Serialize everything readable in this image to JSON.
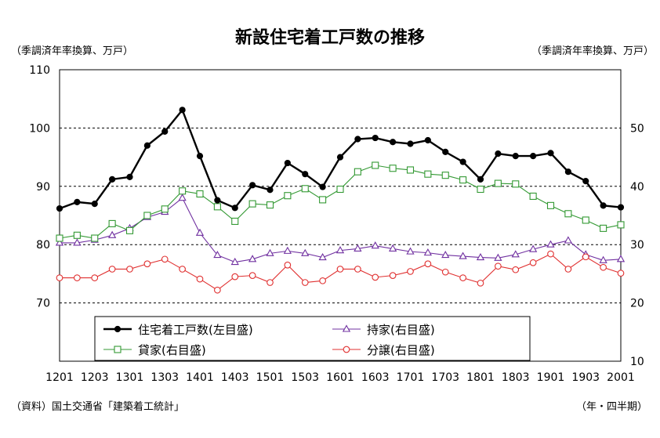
{
  "chart_data": {
    "type": "line",
    "title": "新設住宅着工戸数の推移",
    "ylabel_left": "（季調済年率換算、万戸）",
    "ylabel_right": "（季調済年率換算、万戸）",
    "xlabel": "（年・四半期）",
    "source": "（資料）国土交通省「建築着工統計」",
    "x_tick_labels": [
      "1201",
      "1203",
      "1301",
      "1303",
      "1401",
      "1403",
      "1501",
      "1503",
      "1601",
      "1603",
      "1701",
      "1703",
      "1801",
      "1803",
      "1901",
      "1903",
      "2001"
    ],
    "left_axis": {
      "ticks": [
        70,
        80,
        90,
        100,
        110
      ],
      "range": [
        60,
        110
      ]
    },
    "right_axis": {
      "ticks": [
        10,
        20,
        30,
        40,
        50
      ],
      "range": [
        10,
        60
      ]
    },
    "grid": "dashed horizontal",
    "legend_placement": "bottom-left inside",
    "series": [
      {
        "name": "住宅着工戸数(左目盛)",
        "axis": "left",
        "marker": "filled-circle",
        "color": "#000000",
        "values": [
          86.2,
          87.3,
          87.0,
          91.2,
          91.6,
          97.0,
          99.4,
          103.1,
          95.2,
          87.6,
          86.3,
          90.2,
          89.4,
          94.0,
          92.1,
          89.9,
          95.0,
          98.1,
          98.3,
          97.6,
          97.3,
          97.9,
          95.9,
          94.2,
          91.2,
          95.6,
          95.2,
          95.2,
          95.7,
          92.5,
          90.9,
          86.7,
          86.4
        ]
      },
      {
        "name": "持家(右目盛)",
        "axis": "right",
        "marker": "open-triangle",
        "color": "#7030A0",
        "values": [
          30.3,
          30.3,
          30.8,
          31.6,
          32.8,
          34.7,
          35.6,
          38.0,
          32.0,
          28.2,
          27.0,
          27.5,
          28.5,
          28.9,
          28.5,
          27.8,
          29.0,
          29.3,
          29.8,
          29.3,
          28.8,
          28.6,
          28.2,
          28.0,
          27.8,
          27.7,
          28.3,
          29.2,
          30.0,
          30.7,
          28.3,
          27.3,
          27.5
        ]
      },
      {
        "name": "貸家(右目盛)",
        "axis": "right",
        "marker": "open-square",
        "color": "#339933",
        "values": [
          31.1,
          31.6,
          31.1,
          33.6,
          32.4,
          35.0,
          36.1,
          39.2,
          38.7,
          36.5,
          34.0,
          37.0,
          36.8,
          38.4,
          39.6,
          37.7,
          39.5,
          42.5,
          43.6,
          43.1,
          42.8,
          42.1,
          41.9,
          41.1,
          39.5,
          40.5,
          40.4,
          38.3,
          36.7,
          35.3,
          34.2,
          32.8,
          33.4
        ]
      },
      {
        "name": "分譲(右目盛)",
        "axis": "right",
        "marker": "open-circle",
        "color": "#E03030",
        "values": [
          24.3,
          24.3,
          24.3,
          25.8,
          25.8,
          26.7,
          27.5,
          25.8,
          24.1,
          22.2,
          24.5,
          24.7,
          23.5,
          26.5,
          23.5,
          23.8,
          25.8,
          25.8,
          24.4,
          24.7,
          25.4,
          26.7,
          25.3,
          24.3,
          23.4,
          26.3,
          25.7,
          26.9,
          28.4,
          25.8,
          27.9,
          26.1,
          25.1
        ]
      }
    ]
  }
}
